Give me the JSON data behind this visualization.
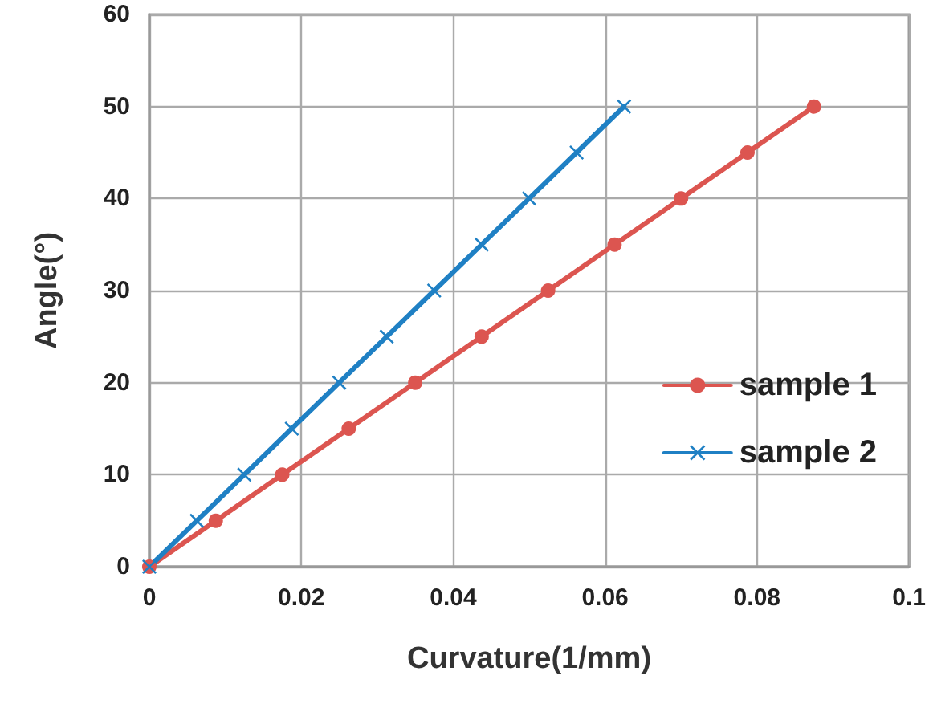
{
  "chart_data": {
    "type": "line",
    "xlabel": "Curvature(1/mm)",
    "ylabel": "Angle(°)",
    "xlim": [
      0,
      0.1
    ],
    "xticks": [
      0,
      0.02,
      0.04,
      0.06,
      0.08,
      0.1
    ],
    "ylim": [
      0,
      60
    ],
    "yticks": [
      0,
      10,
      20,
      30,
      40,
      50,
      60
    ],
    "grid": true,
    "legend": "right",
    "line_style": "solid",
    "series": [
      {
        "name": "sample 1",
        "color": "#dc5550",
        "marker": "circle",
        "x": [
          0,
          0.00875,
          0.0175,
          0.02625,
          0.035,
          0.04375,
          0.0525,
          0.06125,
          0.07,
          0.07875,
          0.0875
        ],
        "values": [
          0,
          5,
          10,
          15,
          20,
          25,
          30,
          35,
          40,
          45,
          50
        ]
      },
      {
        "name": "sample 2",
        "color": "#1f80c4",
        "marker": "cross",
        "x": [
          0,
          0.00625,
          0.0125,
          0.01875,
          0.025,
          0.03125,
          0.0375,
          0.04375,
          0.05,
          0.05625,
          0.0625
        ],
        "values": [
          0,
          5,
          10,
          15,
          20,
          25,
          30,
          35,
          40,
          45,
          50
        ]
      }
    ]
  }
}
